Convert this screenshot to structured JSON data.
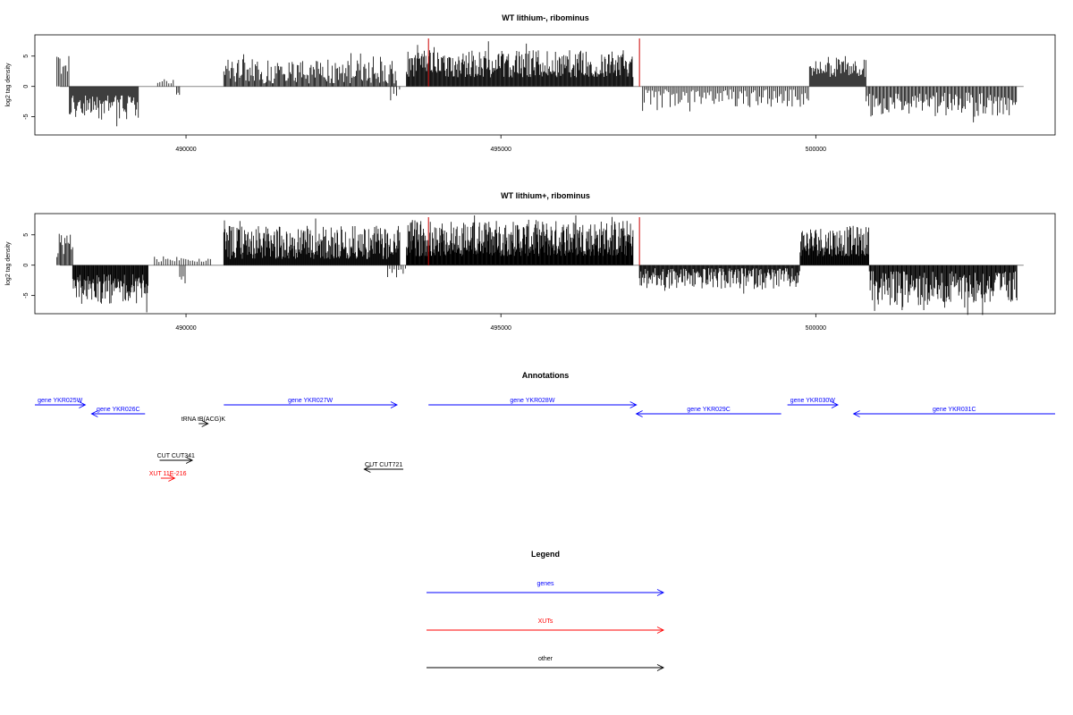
{
  "colors": {
    "gene": "#0000ff",
    "xut": "#ff0000",
    "other": "#000000",
    "boundary": "#cc0000",
    "bars": "#000000",
    "baseline": "#888888"
  },
  "chart_data": [
    {
      "type": "bar",
      "title": "WT lithium-, ribominus",
      "ylabel": "log2 tag density",
      "xlim": [
        487600,
        503800
      ],
      "ylim": [
        -8,
        8.5
      ],
      "xticks": [
        490000,
        495000,
        500000
      ],
      "xtick_labels": [
        "490000",
        "495000",
        "500000"
      ],
      "yticks": [
        -5,
        0,
        5
      ],
      "ytick_labels": [
        "-5",
        "0",
        "5"
      ],
      "grid": false,
      "boundary_lines_x": [
        493850,
        497200
      ],
      "baseline_x": [
        488000,
        503300
      ],
      "segments": [
        {
          "x0": 487950,
          "x1": 488150,
          "sign": 1,
          "min": 2,
          "max": 5.5,
          "density": 0.6
        },
        {
          "x0": 488150,
          "x1": 489250,
          "sign": -1,
          "min": 1.5,
          "max": 5.5,
          "density": 1.0
        },
        {
          "x0": 489550,
          "x1": 489800,
          "sign": 1,
          "min": 0.5,
          "max": 1.5,
          "density": 0.4
        },
        {
          "x0": 489850,
          "x1": 489900,
          "sign": -1,
          "min": 1,
          "max": 1.5,
          "density": 0.6
        },
        {
          "x0": 490600,
          "x1": 493350,
          "sign": 1,
          "min": 0.5,
          "max": 4.5,
          "density": 0.85
        },
        {
          "x0": 493250,
          "x1": 493400,
          "sign": -1,
          "min": 0.5,
          "max": 2.5,
          "density": 0.3
        },
        {
          "x0": 493500,
          "x1": 497100,
          "sign": 1,
          "min": 1.5,
          "max": 6,
          "density": 1.2
        },
        {
          "x0": 497250,
          "x1": 499900,
          "sign": -1,
          "min": 0.5,
          "max": 3.5,
          "density": 0.55
        },
        {
          "x0": 499900,
          "x1": 500800,
          "sign": 1,
          "min": 1.5,
          "max": 4.5,
          "density": 1.0
        },
        {
          "x0": 500800,
          "x1": 503200,
          "sign": -1,
          "min": 1,
          "max": 5,
          "density": 0.75
        }
      ]
    },
    {
      "type": "bar",
      "title": "WT lithium+, ribominus",
      "ylabel": "log2 tag density",
      "xlim": [
        487600,
        503800
      ],
      "ylim": [
        -8,
        8.5
      ],
      "xticks": [
        490000,
        495000,
        500000
      ],
      "xtick_labels": [
        "490000",
        "495000",
        "500000"
      ],
      "yticks": [
        -5,
        0,
        5
      ],
      "ytick_labels": [
        "-5",
        "0",
        "5"
      ],
      "grid": false,
      "boundary_lines_x": [
        493850,
        497200
      ],
      "baseline_x": [
        488000,
        503300
      ],
      "segments": [
        {
          "x0": 487950,
          "x1": 488200,
          "sign": 1,
          "min": 1,
          "max": 5.5,
          "density": 0.8
        },
        {
          "x0": 488200,
          "x1": 489400,
          "sign": -1,
          "min": 1.5,
          "max": 6.5,
          "density": 1.4
        },
        {
          "x0": 489500,
          "x1": 490400,
          "sign": 1,
          "min": 0.5,
          "max": 1.5,
          "density": 0.4
        },
        {
          "x0": 489900,
          "x1": 490000,
          "sign": -1,
          "min": 1.5,
          "max": 2.5,
          "density": 0.5
        },
        {
          "x0": 490600,
          "x1": 493400,
          "sign": 1,
          "min": 1,
          "max": 6.5,
          "density": 1.5
        },
        {
          "x0": 493200,
          "x1": 493500,
          "sign": -1,
          "min": 0.5,
          "max": 2,
          "density": 0.4
        },
        {
          "x0": 493500,
          "x1": 497100,
          "sign": 1,
          "min": 1.5,
          "max": 7.5,
          "density": 1.8
        },
        {
          "x0": 497200,
          "x1": 499750,
          "sign": -1,
          "min": 0.5,
          "max": 4,
          "density": 1.2
        },
        {
          "x0": 499750,
          "x1": 500850,
          "sign": 1,
          "min": 1.5,
          "max": 6.5,
          "density": 1.6
        },
        {
          "x0": 500850,
          "x1": 503200,
          "sign": -1,
          "min": 1,
          "max": 7,
          "density": 1.2
        }
      ]
    }
  ],
  "annotations": {
    "title": "Annotations",
    "xlim": [
      487600,
      503800
    ],
    "features": [
      {
        "label": "gene YKR025W",
        "type": "gene",
        "strand": "+",
        "start": 487600,
        "end": 488400,
        "row": 0
      },
      {
        "label": "gene YKR026C",
        "type": "gene",
        "strand": "-",
        "start": 488500,
        "end": 489350,
        "row": 1
      },
      {
        "label": "tRNA tB(ACG)K",
        "type": "other",
        "strand": "+",
        "start": 490200,
        "end": 490350,
        "row": 2
      },
      {
        "label": "gene YKR027W",
        "type": "gene",
        "strand": "+",
        "start": 490600,
        "end": 493350,
        "row": 0
      },
      {
        "label": "gene YKR028W",
        "type": "gene",
        "strand": "+",
        "start": 493850,
        "end": 497150,
        "row": 0
      },
      {
        "label": "gene YKR029C",
        "type": "gene",
        "strand": "-",
        "start": 497150,
        "end": 499450,
        "row": 1
      },
      {
        "label": "gene YKR030W",
        "type": "gene",
        "strand": "+",
        "start": 499550,
        "end": 500350,
        "row": 0
      },
      {
        "label": "gene YKR031C",
        "type": "gene",
        "strand": "-",
        "start": 500600,
        "end": 503800,
        "row": 1
      },
      {
        "label": "CUT CUT341",
        "type": "other",
        "strand": "+",
        "start": 489580,
        "end": 490100,
        "row": 4
      },
      {
        "label": "CUT CUT721",
        "type": "other",
        "strand": "-",
        "start": 492830,
        "end": 493450,
        "row": 5
      },
      {
        "label": "XUT 11E-216",
        "type": "xut",
        "strand": "+",
        "start": 489600,
        "end": 489820,
        "row": 6
      }
    ]
  },
  "legend": {
    "title": "Legend",
    "items": [
      {
        "label": "genes",
        "type": "gene"
      },
      {
        "label": "XUTs",
        "type": "xut"
      },
      {
        "label": "other",
        "type": "other"
      }
    ]
  }
}
